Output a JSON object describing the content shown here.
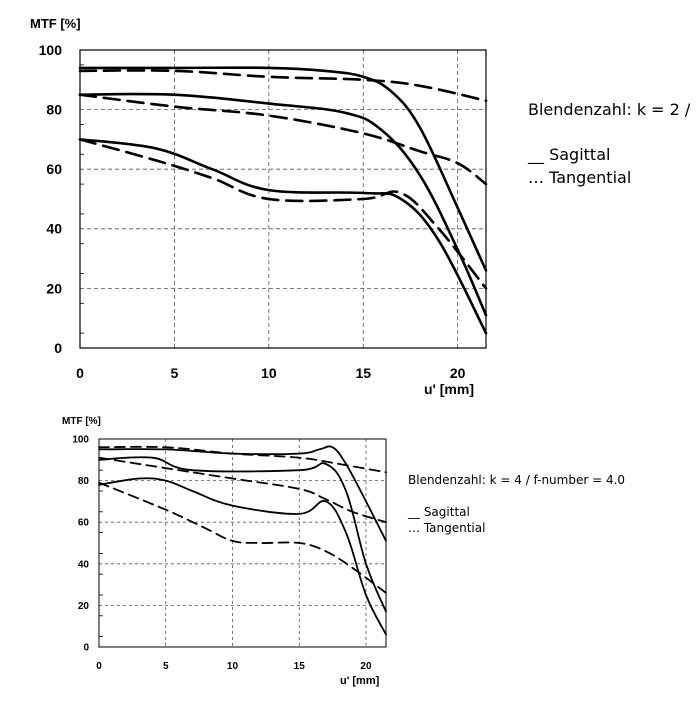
{
  "chart_data": [
    {
      "type": "line",
      "ylabel": "MTF [%]",
      "xlabel": "u' [mm]",
      "xlim": [
        0,
        21.5
      ],
      "ylim": [
        0,
        100
      ],
      "xticks": [
        "0",
        "5",
        "10",
        "15",
        "20"
      ],
      "yticks": [
        "0",
        "20",
        "40",
        "60",
        "80",
        "100"
      ],
      "grid": true,
      "legend_position": "right",
      "annotations": {
        "title_line": "Blendenzahl: k = 2 /",
        "sagittal": "__ Sagittal",
        "tangential": "… Tangential"
      },
      "series": [
        {
          "style": "solid",
          "x": [
            0,
            5,
            10,
            13,
            15,
            16.5,
            18,
            20,
            21.5
          ],
          "y": [
            94,
            94,
            94,
            93,
            91,
            86,
            74,
            47,
            26
          ]
        },
        {
          "style": "dashed",
          "x": [
            0,
            5,
            10,
            15,
            18,
            21.5
          ],
          "y": [
            93,
            93,
            91,
            90,
            88,
            83
          ]
        },
        {
          "style": "solid",
          "x": [
            0,
            5,
            10,
            14,
            16,
            18,
            20,
            21.5
          ],
          "y": [
            85,
            85,
            82,
            79,
            73,
            58,
            33,
            11
          ]
        },
        {
          "style": "dashed",
          "x": [
            0,
            5,
            10,
            15,
            18,
            20,
            21.5
          ],
          "y": [
            85,
            81,
            78,
            72,
            66,
            62,
            55
          ]
        },
        {
          "style": "solid",
          "x": [
            0,
            4,
            7,
            10,
            15,
            17,
            19,
            21.5
          ],
          "y": [
            70,
            67,
            60,
            53,
            52,
            50,
            36,
            5
          ]
        },
        {
          "style": "dashed",
          "x": [
            0,
            4,
            7,
            10,
            15,
            17,
            19,
            21.5
          ],
          "y": [
            70,
            63,
            57,
            50,
            50,
            52,
            40,
            20
          ]
        }
      ]
    },
    {
      "type": "line",
      "ylabel": "MTF [%]",
      "xlabel": "u' [mm]",
      "xlim": [
        0,
        21.5
      ],
      "ylim": [
        0,
        100
      ],
      "xticks": [
        "0",
        "5",
        "10",
        "15",
        "20"
      ],
      "yticks": [
        "0",
        "20",
        "40",
        "60",
        "80",
        "100"
      ],
      "grid": true,
      "legend_position": "right",
      "annotations": {
        "title_line": "Blendenzahl: k = 4 / f-number = 4.0",
        "sagittal": "__ Sagittal",
        "tangential": "… Tangential"
      },
      "series": [
        {
          "style": "solid",
          "x": [
            0,
            5,
            10,
            15,
            16.5,
            17.5,
            18.5,
            20,
            21.5
          ],
          "y": [
            95,
            95,
            93,
            93,
            95,
            96,
            88,
            70,
            51
          ]
        },
        {
          "style": "dashed",
          "x": [
            0,
            5,
            10,
            15,
            18,
            21.5
          ],
          "y": [
            96,
            96,
            93,
            91,
            88,
            84
          ]
        },
        {
          "style": "solid",
          "x": [
            0,
            4,
            7,
            15,
            17,
            18.5,
            20,
            21.5
          ],
          "y": [
            90,
            91,
            85,
            85,
            88,
            75,
            40,
            17
          ]
        },
        {
          "style": "dashed",
          "x": [
            0,
            5,
            10,
            15,
            17,
            19,
            21.5
          ],
          "y": [
            91,
            86,
            81,
            76,
            71,
            65,
            60
          ]
        },
        {
          "style": "solid",
          "x": [
            0,
            3,
            5,
            7,
            10,
            15,
            17,
            18.5,
            20,
            21.5
          ],
          "y": [
            78,
            81,
            80,
            75,
            68,
            64,
            70,
            55,
            25,
            6
          ]
        },
        {
          "style": "dashed",
          "x": [
            0,
            5,
            8,
            10,
            12,
            15,
            17,
            19,
            21.5
          ],
          "y": [
            79,
            66,
            57,
            51,
            50,
            50,
            46,
            38,
            26
          ]
        }
      ]
    }
  ]
}
